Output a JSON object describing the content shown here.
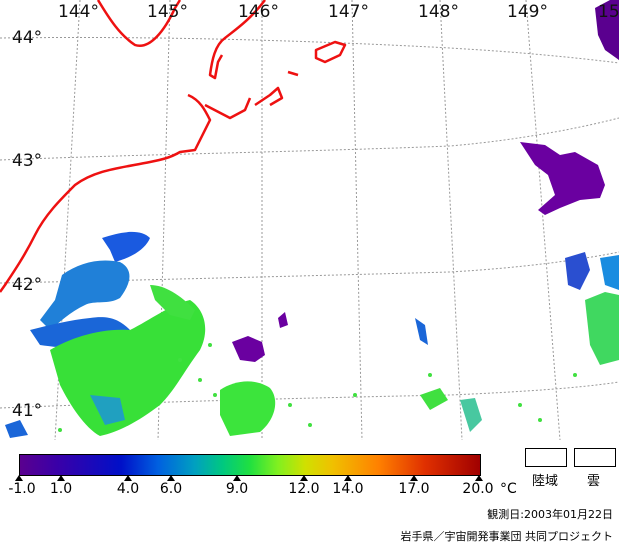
{
  "map": {
    "longitude_labels": [
      "144°",
      "145°",
      "146°",
      "147°",
      "148°",
      "149°",
      "15"
    ],
    "latitude_labels": [
      "44°",
      "43°",
      "42°",
      "41°"
    ]
  },
  "legend": {
    "ticks": [
      "-1.0",
      "1.0",
      "4.0",
      "6.0",
      "9.0",
      "12.0",
      "14.0",
      "17.0",
      "20.0"
    ],
    "unit": "°C",
    "land_label": "陸域",
    "cloud_label": "雲"
  },
  "footer": {
    "date_line": "観測日:2003年01月22日",
    "credit_line": "岩手県／宇宙開発事業団 共同プロジェクト"
  },
  "colors": {
    "coastline": "#ee1111",
    "grid": "#999999",
    "cold": "#5a008f",
    "blue": "#1060e0",
    "green": "#30e030"
  }
}
